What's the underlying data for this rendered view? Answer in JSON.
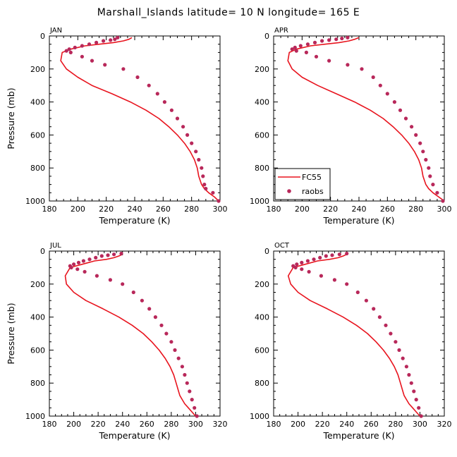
{
  "title": "Marshall_Islands   latitude=  10 N  longitude=  165 E",
  "colors": {
    "model": "#e8141e",
    "obs": "#b8285a",
    "axis": "#000000"
  },
  "legend": {
    "model": "FC55",
    "obs": "raobs",
    "placement": "lower-left of APR panel"
  },
  "chart_data": [
    {
      "type": "line",
      "label": "JAN",
      "xlabel": "Temperature (K)",
      "ylabel": "Pressure (mb)",
      "xlim": [
        180,
        300
      ],
      "ylim": [
        1000,
        0
      ],
      "xticks": [
        180,
        200,
        220,
        240,
        260,
        280,
        300
      ],
      "yticks": [
        0,
        200,
        400,
        600,
        800,
        1000
      ],
      "series": [
        {
          "name": "FC55",
          "kind": "line",
          "x": [
            299,
            296,
            292,
            289,
            287,
            286,
            285,
            284,
            282,
            279,
            275,
            270,
            264,
            257,
            248,
            237,
            224,
            210,
            200,
            192,
            188,
            189,
            195,
            205,
            215,
            225,
            232,
            236,
            238
          ],
          "y": [
            1000,
            975,
            950,
            925,
            900,
            875,
            850,
            800,
            750,
            700,
            650,
            600,
            550,
            500,
            450,
            400,
            350,
            300,
            250,
            200,
            150,
            100,
            80,
            60,
            50,
            40,
            30,
            20,
            10
          ]
        },
        {
          "name": "raobs",
          "kind": "scatter",
          "x": [
            299,
            295,
            290,
            289,
            288,
            287,
            285,
            283,
            280,
            277,
            274,
            270,
            266,
            261,
            256,
            250,
            242,
            232,
            219,
            210,
            203,
            195,
            192,
            194,
            198,
            203,
            208,
            213,
            218,
            223,
            226,
            228
          ],
          "y": [
            1000,
            950,
            925,
            900,
            850,
            800,
            750,
            700,
            650,
            600,
            550,
            500,
            450,
            400,
            350,
            300,
            250,
            200,
            175,
            150,
            125,
            100,
            90,
            80,
            70,
            60,
            50,
            40,
            30,
            25,
            20,
            10
          ]
        }
      ]
    },
    {
      "type": "line",
      "label": "APR",
      "xlabel": "Temperature (K)",
      "ylabel": "",
      "xlim": [
        180,
        300
      ],
      "ylim": [
        1000,
        0
      ],
      "xticks": [
        180,
        200,
        220,
        240,
        260,
        280,
        300
      ],
      "yticks": [
        0,
        200,
        400,
        600,
        800,
        1000
      ],
      "series": [
        {
          "name": "FC55",
          "kind": "line",
          "x": [
            300,
            296,
            292,
            289,
            287,
            286,
            285,
            284,
            282,
            279,
            275,
            270,
            264,
            257,
            248,
            237,
            224,
            211,
            200,
            193,
            190,
            191,
            196,
            206,
            216,
            226,
            233,
            237,
            240
          ],
          "y": [
            1000,
            975,
            950,
            925,
            900,
            875,
            850,
            800,
            750,
            700,
            650,
            600,
            550,
            500,
            450,
            400,
            350,
            300,
            250,
            200,
            150,
            100,
            80,
            60,
            50,
            40,
            30,
            20,
            10
          ]
        },
        {
          "name": "raobs",
          "kind": "scatter",
          "x": [
            299,
            295,
            292,
            290,
            289,
            287,
            285,
            283,
            280,
            277,
            273,
            269,
            265,
            260,
            255,
            250,
            242,
            232,
            219,
            210,
            203,
            196,
            193,
            195,
            199,
            204,
            209,
            214,
            219,
            224,
            228,
            232
          ],
          "y": [
            1000,
            950,
            900,
            850,
            800,
            750,
            700,
            650,
            600,
            550,
            500,
            450,
            400,
            350,
            300,
            250,
            200,
            175,
            150,
            125,
            100,
            90,
            80,
            70,
            60,
            50,
            40,
            30,
            25,
            20,
            15,
            10
          ]
        }
      ]
    },
    {
      "type": "line",
      "label": "JUL",
      "xlabel": "Temperature (K)",
      "ylabel": "Pressure (mb)",
      "xlim": [
        180,
        320
      ],
      "ylim": [
        1000,
        0
      ],
      "xticks": [
        180,
        200,
        220,
        240,
        260,
        280,
        300,
        320
      ],
      "yticks": [
        0,
        200,
        400,
        600,
        800,
        1000
      ],
      "series": [
        {
          "name": "FC55",
          "kind": "line",
          "x": [
            300,
            297,
            294,
            291,
            289,
            287,
            286,
            285,
            284,
            282,
            279,
            275,
            270,
            264,
            257,
            248,
            237,
            224,
            210,
            200,
            194,
            193,
            197,
            207,
            217,
            227,
            233,
            237,
            240
          ],
          "y": [
            1000,
            975,
            950,
            925,
            900,
            875,
            850,
            825,
            800,
            750,
            700,
            650,
            600,
            550,
            500,
            450,
            400,
            350,
            300,
            250,
            200,
            150,
            100,
            80,
            60,
            50,
            40,
            30,
            20
          ]
        },
        {
          "name": "raobs",
          "kind": "scatter",
          "x": [
            301,
            299,
            297,
            295,
            293,
            291,
            289,
            286,
            283,
            280,
            276,
            272,
            267,
            262,
            256,
            249,
            240,
            230,
            219,
            209,
            203,
            198,
            197,
            200,
            204,
            208,
            213,
            218,
            223,
            228,
            233,
            239
          ],
          "y": [
            1000,
            950,
            900,
            850,
            800,
            750,
            700,
            650,
            600,
            550,
            500,
            450,
            400,
            350,
            300,
            250,
            200,
            175,
            150,
            125,
            110,
            100,
            90,
            80,
            70,
            60,
            50,
            40,
            30,
            25,
            20,
            15
          ]
        }
      ]
    },
    {
      "type": "line",
      "label": "OCT",
      "xlabel": "Temperature (K)",
      "ylabel": "",
      "xlim": [
        180,
        320
      ],
      "ylim": [
        1000,
        0
      ],
      "xticks": [
        180,
        200,
        220,
        240,
        260,
        280,
        300,
        320
      ],
      "yticks": [
        0,
        200,
        400,
        600,
        800,
        1000
      ],
      "series": [
        {
          "name": "FC55",
          "kind": "line",
          "x": [
            300,
            297,
            294,
            291,
            289,
            287,
            286,
            285,
            284,
            282,
            279,
            275,
            270,
            264,
            257,
            248,
            237,
            224,
            210,
            200,
            194,
            192,
            196,
            206,
            216,
            226,
            233,
            237,
            240
          ],
          "y": [
            1000,
            975,
            950,
            925,
            900,
            875,
            850,
            825,
            800,
            750,
            700,
            650,
            600,
            550,
            500,
            450,
            400,
            350,
            300,
            250,
            200,
            150,
            100,
            80,
            60,
            50,
            40,
            30,
            20
          ]
        },
        {
          "name": "raobs",
          "kind": "scatter",
          "x": [
            301,
            299,
            297,
            295,
            293,
            291,
            289,
            286,
            283,
            280,
            276,
            272,
            267,
            262,
            256,
            249,
            240,
            230,
            219,
            209,
            203,
            198,
            196,
            199,
            203,
            208,
            213,
            218,
            223,
            228,
            234,
            240
          ],
          "y": [
            1000,
            950,
            900,
            850,
            800,
            750,
            700,
            650,
            600,
            550,
            500,
            450,
            400,
            350,
            300,
            250,
            200,
            175,
            150,
            125,
            110,
            100,
            90,
            80,
            70,
            60,
            50,
            40,
            30,
            25,
            20,
            15
          ]
        }
      ]
    }
  ]
}
